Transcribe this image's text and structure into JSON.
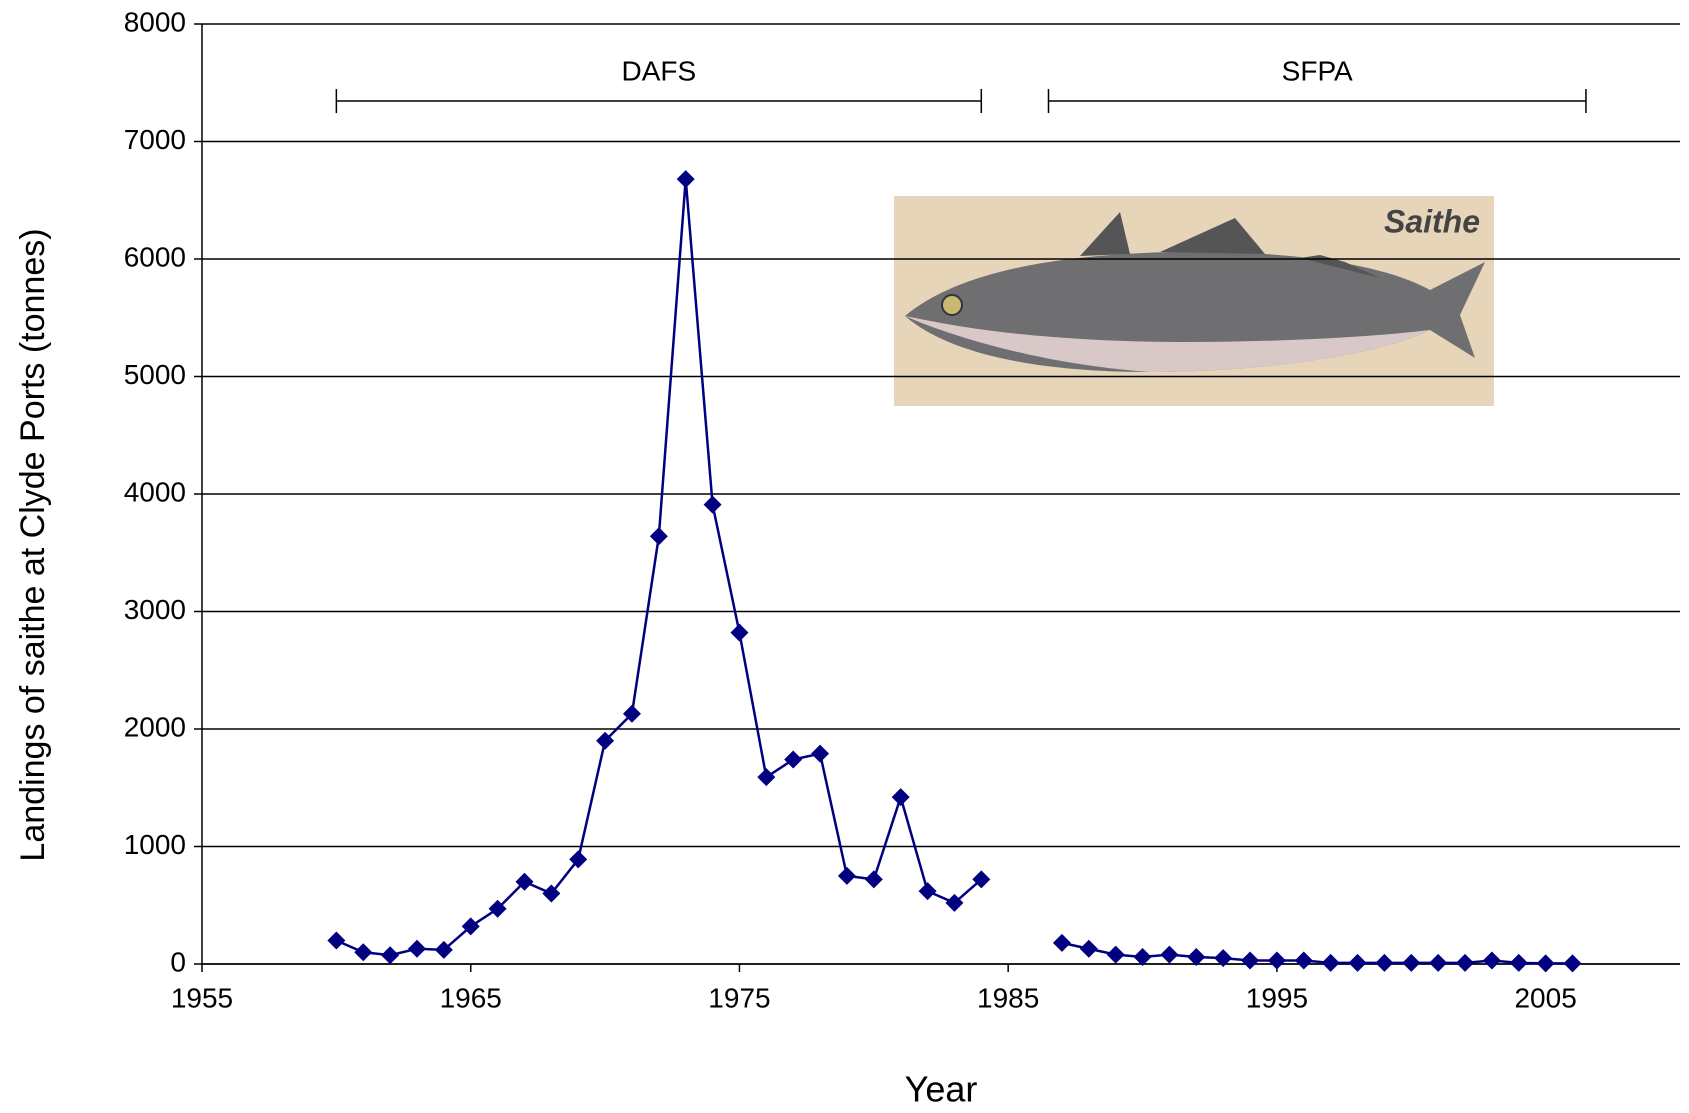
{
  "chart_data": {
    "type": "line",
    "xlabel": "Year",
    "ylabel": "Landings of saithe at Clyde Ports (tonnes)",
    "image_label": "Saithe",
    "x": [
      1960,
      1961,
      1962,
      1963,
      1964,
      1965,
      1966,
      1967,
      1968,
      1969,
      1970,
      1971,
      1972,
      1973,
      1974,
      1975,
      1976,
      1977,
      1978,
      1979,
      1980,
      1981,
      1982,
      1983,
      1984,
      1985,
      1986,
      1987,
      1988,
      1989,
      1990,
      1991,
      1992,
      1993,
      1994,
      1995,
      1996,
      1997,
      1998,
      1999,
      2000,
      2001,
      2002,
      2003,
      2004,
      2005,
      2006
    ],
    "series": [
      {
        "name": "Saithe",
        "color": "#000080",
        "values": [
          200,
          100,
          75,
          130,
          120,
          320,
          470,
          700,
          600,
          890,
          1900,
          2130,
          3640,
          6680,
          3910,
          2820,
          1590,
          1740,
          1790,
          750,
          720,
          1420,
          620,
          520,
          720,
          null,
          null,
          180,
          130,
          80,
          60,
          80,
          60,
          50,
          30,
          30,
          30,
          10,
          10,
          10,
          10,
          10,
          10,
          30,
          10,
          5,
          5
        ]
      }
    ],
    "periods": [
      {
        "label": "DAFS",
        "start": 1960,
        "end": 1984
      },
      {
        "label": "SFPA",
        "start": 1986.5,
        "end": 2006.5
      }
    ],
    "xlim": [
      1955,
      2010
    ],
    "xticks": [
      1955,
      1965,
      1975,
      1985,
      1995,
      2005
    ],
    "ylim": [
      0,
      8000
    ],
    "yticks": [
      0,
      1000,
      2000,
      3000,
      4000,
      5000,
      6000,
      7000,
      8000
    ],
    "grid": true
  }
}
